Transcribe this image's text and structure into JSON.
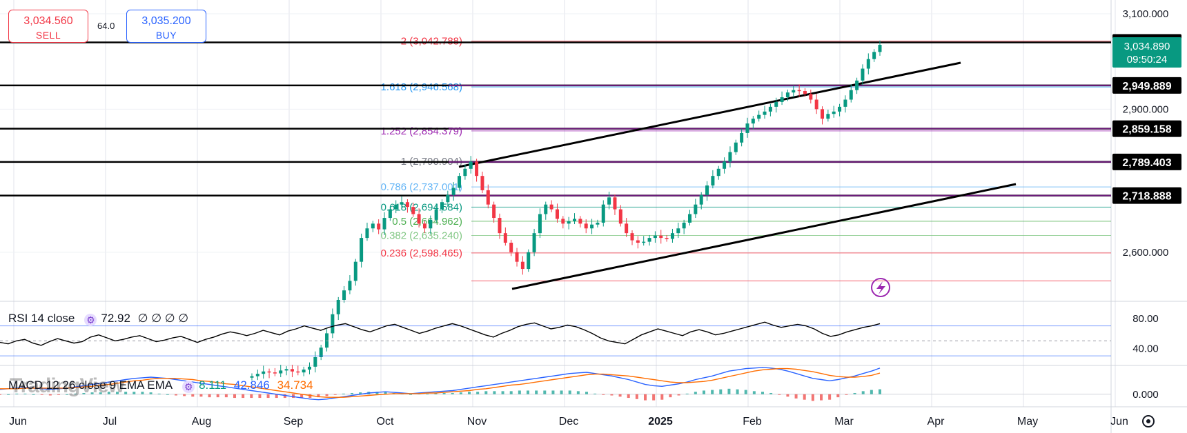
{
  "trade_panel": {
    "sell_price": "3,034.560",
    "sell_label": "SELL",
    "spread": "64.0",
    "buy_price": "3,035.200",
    "buy_label": "BUY"
  },
  "watermark": "TradingView",
  "chart_data": [
    {
      "type": "candlestick",
      "x_axis": {
        "ticks": [
          "Jun",
          "Jul",
          "Aug",
          "Sep",
          "Oct",
          "Nov",
          "Dec",
          "2025",
          "Feb",
          "Mar",
          "Apr",
          "May",
          "Jun"
        ]
      },
      "y_axis": {
        "side": "right",
        "ticks": [
          "3,100.000",
          "2,900.000",
          "2,600.000"
        ],
        "range": [
          2500,
          3100
        ]
      },
      "last_price": {
        "label": "3,034.890",
        "countdown": "09:50:24",
        "value": 3034.89
      },
      "candles_close": [
        2340,
        2345,
        2350,
        2348,
        2346,
        2352,
        2355,
        2350,
        2348,
        2354,
        2360,
        2380,
        2400,
        2430,
        2470,
        2500,
        2520,
        2540,
        2580,
        2630,
        2650,
        2660,
        2648,
        2672,
        2690,
        2700,
        2705,
        2695,
        2680,
        2660,
        2650,
        2668,
        2690,
        2705,
        2720,
        2735,
        2760,
        2775,
        2790,
        2760,
        2730,
        2700,
        2672,
        2640,
        2620,
        2600,
        2580,
        2565,
        2600,
        2640,
        2680,
        2700,
        2690,
        2670,
        2660,
        2665,
        2670,
        2660,
        2650,
        2658,
        2662,
        2700,
        2715,
        2690,
        2660,
        2640,
        2625,
        2620,
        2622,
        2630,
        2635,
        2630,
        2628,
        2640,
        2650,
        2662,
        2680,
        2700,
        2720,
        2740,
        2760,
        2775,
        2790,
        2810,
        2830,
        2850,
        2870,
        2880,
        2888,
        2895,
        2905,
        2915,
        2925,
        2935,
        2940,
        2938,
        2932,
        2920,
        2900,
        2880,
        2890,
        2895,
        2905,
        2920,
        2940,
        2960,
        2985,
        3005,
        3020,
        3034.89
      ],
      "horizontal_levels": [
        {
          "label": "3,039.971",
          "value": 3039.971,
          "color": "#000000"
        },
        {
          "label": "2,949.889",
          "value": 2949.889,
          "color": "#000000"
        },
        {
          "label": "2,859.158",
          "value": 2859.158,
          "color": "#000000"
        },
        {
          "label": "2,789.403",
          "value": 2789.403,
          "color": "#000000"
        },
        {
          "label": "2,718.888",
          "value": 2718.888,
          "color": "#000000"
        }
      ],
      "fibonacci": [
        {
          "label": "2 (3,042.788)",
          "value": 3042.788,
          "color": "#f23645"
        },
        {
          "label": "1.618 (2,946.568)",
          "value": 2946.568,
          "color": "#2196f3"
        },
        {
          "label": "1.252 (2,854.379)",
          "value": 2854.379,
          "color": "#9c27b0"
        },
        {
          "label": "1 (2,790.904)",
          "value": 2790.904,
          "color": "#787b86"
        },
        {
          "label": "0.786 (2,737.001)",
          "value": 2737.001,
          "color": "#64b5f6"
        },
        {
          "label": "0.618 (2,694.584)",
          "value": 2694.584,
          "color": "#089981"
        },
        {
          "label": "0.5 (2,664.962)",
          "value": 2664.962,
          "color": "#4caf50"
        },
        {
          "label": "0.382 (2,635.240)",
          "value": 2635.24,
          "color": "#81c784"
        },
        {
          "label": "0.236 (2,598.465)",
          "value": 2598.465,
          "color": "#f23645"
        },
        {
          "label": "",
          "value": 2540,
          "color": "#f23645"
        }
      ]
    },
    {
      "type": "line",
      "legend": {
        "name": "RSI 14 close",
        "value": "72.92",
        "extra": "∅ ∅ ∅ ∅"
      },
      "y_axis": {
        "ticks": [
          "80.00",
          "40.00"
        ],
        "range": [
          20,
          100
        ]
      },
      "levels": [
        70,
        30
      ],
      "values": [
        48,
        46,
        50,
        52,
        47,
        44,
        49,
        53,
        50,
        47,
        49,
        55,
        58,
        54,
        50,
        52,
        55,
        57,
        53,
        49,
        51,
        54,
        56,
        52,
        48,
        52,
        55,
        59,
        62,
        60,
        57,
        60,
        64,
        61,
        58,
        63,
        66,
        70,
        67,
        64,
        68,
        71,
        73,
        69,
        65,
        62,
        66,
        70,
        72,
        68,
        64,
        60,
        63,
        67,
        70,
        73,
        70,
        66,
        62,
        58,
        55,
        60,
        64,
        69,
        72,
        74,
        70,
        66,
        68,
        71,
        69,
        65,
        60,
        54,
        50,
        48,
        46,
        52,
        58,
        62,
        66,
        63,
        60,
        57,
        62,
        65,
        62,
        58,
        60,
        63,
        66,
        69,
        72,
        75,
        71,
        68,
        70,
        72,
        70,
        66,
        60,
        56,
        58,
        62,
        65,
        68,
        70,
        72.92
      ]
    },
    {
      "type": "histogram+line",
      "legend": {
        "name": "MACD 12 26 close 9 EMA EMA",
        "values": [
          "8.111",
          "42.846",
          "34.734"
        ],
        "colors": [
          "#089981",
          "#2962ff",
          "#ff6d00"
        ]
      },
      "y_axis": {
        "ticks": [
          "0.000"
        ],
        "range": [
          -15,
          45
        ]
      },
      "macd": [
        8,
        9,
        10,
        11,
        10,
        9,
        8,
        9,
        10,
        12,
        14,
        16,
        18,
        20,
        22,
        24,
        26,
        27,
        28,
        27,
        26,
        24,
        22,
        20,
        18,
        16,
        14,
        12,
        10,
        8,
        6,
        4,
        2,
        0,
        -2,
        -4,
        -6,
        -8,
        -9,
        -8,
        -6,
        -4,
        -2,
        0,
        2,
        3,
        4,
        3,
        2,
        1,
        2,
        3,
        4,
        5,
        6,
        8,
        10,
        12,
        14,
        16,
        18,
        20,
        22,
        24,
        26,
        28,
        30,
        32,
        34,
        35,
        36,
        34,
        32,
        30,
        27,
        24,
        20,
        16,
        14,
        13,
        15,
        17,
        20,
        24,
        27,
        30,
        34,
        38,
        40,
        42,
        43,
        44,
        43,
        41,
        38,
        34,
        30,
        26,
        24,
        22,
        24,
        27,
        30,
        34,
        38,
        42.846
      ],
      "signal": [
        9,
        9,
        9,
        10,
        10,
        10,
        10,
        10,
        10,
        11,
        12,
        13,
        15,
        16,
        18,
        20,
        22,
        23,
        25,
        26,
        26,
        26,
        25,
        24,
        22,
        21,
        19,
        17,
        16,
        14,
        12,
        10,
        8,
        6,
        4,
        2,
        0,
        -2,
        -4,
        -5,
        -5,
        -5,
        -4,
        -3,
        -2,
        -1,
        0,
        1,
        1,
        1,
        1,
        2,
        2,
        3,
        4,
        5,
        6,
        8,
        9,
        11,
        13,
        15,
        16,
        18,
        20,
        22,
        24,
        26,
        28,
        30,
        32,
        33,
        33,
        32,
        31,
        30,
        28,
        26,
        24,
        22,
        20,
        19,
        19,
        20,
        21,
        23,
        26,
        29,
        32,
        35,
        38,
        40,
        41,
        42,
        42,
        41,
        39,
        37,
        34,
        31,
        29,
        28,
        28,
        29,
        31,
        34.734
      ]
    }
  ]
}
